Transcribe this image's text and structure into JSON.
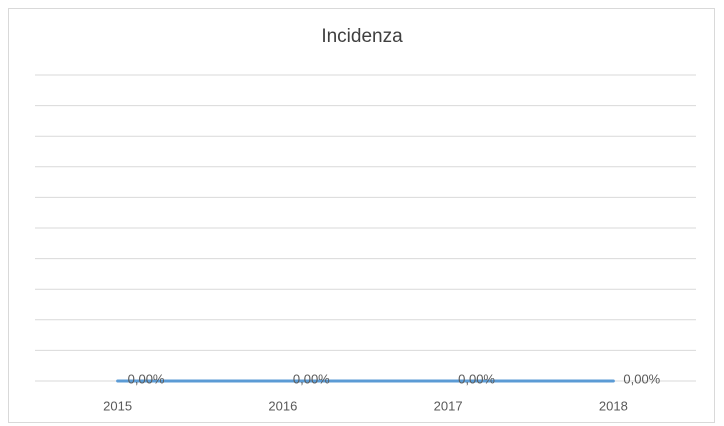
{
  "chart_data": {
    "type": "line",
    "title": "Incidenza",
    "categories": [
      "2015",
      "2016",
      "2017",
      "2018"
    ],
    "series": [
      {
        "name": "Incidenza",
        "color": "#5b9bd5",
        "values": [
          0,
          0,
          0,
          0
        ],
        "value_labels": [
          "0,00%",
          "0,00%",
          "0,00%",
          "0,00%"
        ]
      }
    ],
    "ylim": [
      0,
      100
    ],
    "yticks": [
      0,
      10,
      20,
      30,
      40,
      50,
      60,
      70,
      80,
      90,
      100
    ],
    "grid": true
  }
}
